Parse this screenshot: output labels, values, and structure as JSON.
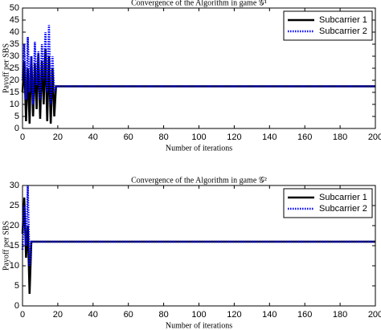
{
  "chart_data": [
    {
      "type": "line",
      "title": "Convergence of the Algorithm in game 𝒢¹",
      "x_label": "Number of iterations",
      "y_label": "Payoff per SBS",
      "x": [
        0,
        1,
        2,
        3,
        4,
        5,
        6,
        7,
        8,
        9,
        10,
        11,
        12,
        13,
        14,
        15,
        16,
        17,
        18,
        19,
        20,
        200
      ],
      "series": [
        {
          "name": "Subcarrier 1",
          "color": "#000000",
          "linestyle": "solid",
          "values": [
            15,
            28,
            3,
            25,
            2,
            30,
            5,
            27,
            8,
            31,
            4,
            28,
            10,
            33,
            3,
            30,
            2,
            25,
            5,
            17.5,
            17.5,
            17.5
          ]
        },
        {
          "name": "Subcarrier 2",
          "color": "#0000ff",
          "linestyle": "dotted",
          "values": [
            20,
            35,
            12,
            38,
            15,
            30,
            10,
            36,
            18,
            32,
            12,
            35,
            20,
            40,
            15,
            43,
            10,
            30,
            15,
            17.5,
            17.5,
            17.5
          ]
        }
      ],
      "xlim": [
        0,
        200
      ],
      "xticks": [
        0,
        20,
        40,
        60,
        80,
        100,
        120,
        140,
        160,
        180,
        200
      ],
      "ylim": [
        0,
        50
      ],
      "yticks": [
        0,
        5,
        10,
        15,
        20,
        25,
        30,
        35,
        40,
        45,
        50
      ],
      "legend": "upper right"
    },
    {
      "type": "line",
      "title": "Convergence of the Algorithm in game 𝒢²",
      "x_label": "Number of iterations",
      "y_label": "Payoff per SBS",
      "x": [
        0,
        1,
        2,
        3,
        4,
        5,
        6,
        200
      ],
      "series": [
        {
          "name": "Subcarrier 1",
          "color": "#000000",
          "linestyle": "solid",
          "values": [
            18,
            27,
            12,
            20,
            3,
            16,
            16,
            16
          ]
        },
        {
          "name": "Subcarrier 2",
          "color": "#0000ff",
          "linestyle": "dotted",
          "values": [
            14,
            25,
            15,
            30,
            10,
            16,
            16,
            16
          ]
        }
      ],
      "xlim": [
        0,
        200
      ],
      "xticks": [
        0,
        20,
        40,
        60,
        80,
        100,
        120,
        140,
        160,
        180,
        200
      ],
      "ylim": [
        0,
        30
      ],
      "yticks": [
        0,
        5,
        10,
        15,
        20,
        25,
        30
      ],
      "legend": "upper right"
    }
  ]
}
